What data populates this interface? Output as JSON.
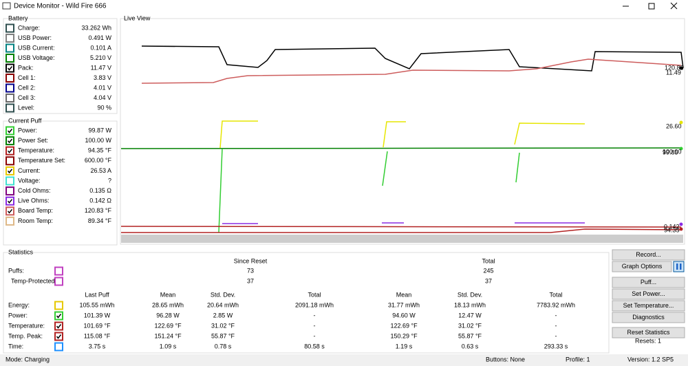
{
  "window": {
    "title": "Device Monitor - Wild Fire 666"
  },
  "battery": {
    "title": "Battery",
    "rows": [
      {
        "label": "Charge:",
        "value": "33.262 Wh",
        "color": "#2f4f4f",
        "checked": false
      },
      {
        "label": "USB Power:",
        "value": "0.491 W",
        "color": "#808080",
        "checked": false
      },
      {
        "label": "USB Current:",
        "value": "0.101 A",
        "color": "#008080",
        "checked": false
      },
      {
        "label": "USB Voltage:",
        "value": "5.210 V",
        "color": "#008000",
        "checked": false
      },
      {
        "label": "Pack:",
        "value": "11.47 V",
        "color": "#000000",
        "checked": true
      },
      {
        "label": "Cell 1:",
        "value": "3.83 V",
        "color": "#8b0000",
        "checked": false
      },
      {
        "label": "Cell 2:",
        "value": "4.01 V",
        "color": "#00008b",
        "checked": false
      },
      {
        "label": "Cell 3:",
        "value": "4.04 V",
        "color": "#696969",
        "checked": false
      },
      {
        "label": "Level:",
        "value": "90 %",
        "color": "#2f4f4f",
        "checked": false
      }
    ]
  },
  "current_puff": {
    "title": "Current Puff",
    "rows": [
      {
        "label": "Power:",
        "value": "99.87 W",
        "color": "#32cd32",
        "checked": true
      },
      {
        "label": "Power Set:",
        "value": "100.00 W",
        "color": "#008000",
        "checked": true
      },
      {
        "label": "Temperature:",
        "value": "94.35 °F",
        "color": "#b22222",
        "checked": true
      },
      {
        "label": "Temperature Set:",
        "value": "600.00 °F",
        "color": "#8b0000",
        "checked": false
      },
      {
        "label": "Current:",
        "value": "26.53 A",
        "color": "#e6c800",
        "checked": true
      },
      {
        "label": "Voltage:",
        "value": "?",
        "color": "#40e0d0",
        "checked": false
      },
      {
        "label": "Cold Ohms:",
        "value": "0.135 Ω",
        "color": "#800080",
        "checked": false
      },
      {
        "label": "Live Ohms:",
        "value": "0.142 Ω",
        "color": "#8a2be2",
        "checked": true
      },
      {
        "label": "Board Temp:",
        "value": "120.83 °F",
        "color": "#cd5c5c",
        "checked": true
      },
      {
        "label": "Room Temp:",
        "value": "89.34 °F",
        "color": "#deb887",
        "checked": false
      }
    ]
  },
  "live_view": {
    "title": "Live View",
    "end_labels": [
      "120.83",
      "11.49",
      "26.60",
      "100.00",
      "99.85",
      "0.142",
      "94.35"
    ]
  },
  "statistics": {
    "title": "Statistics",
    "since_reset": "Since Reset",
    "total": "Total",
    "summary": [
      {
        "label": "Puffs:",
        "color": "#c040c0",
        "since_reset": "73",
        "total": "245"
      },
      {
        "label": "Temp-Protected:",
        "color": "#c040c0",
        "since_reset": "37",
        "total": "37"
      }
    ],
    "columns": [
      "Last Puff",
      "Mean",
      "Std. Dev.",
      "Total",
      "Mean",
      "Std. Dev.",
      "Total"
    ],
    "rows": [
      {
        "label": "Energy:",
        "color": "#e6c800",
        "checked": false,
        "values": [
          "105.55 mWh",
          "28.65 mWh",
          "20.64 mWh",
          "2091.18 mWh",
          "31.77 mWh",
          "18.13 mWh",
          "7783.92 mWh"
        ]
      },
      {
        "label": "Power:",
        "color": "#32cd32",
        "checked": true,
        "values": [
          "101.39 W",
          "96.28 W",
          "2.85 W",
          "-",
          "94.60 W",
          "12.47 W",
          "-"
        ]
      },
      {
        "label": "Temperature:",
        "color": "#b22222",
        "checked": true,
        "values": [
          "101.69 °F",
          "122.69 °F",
          "31.02 °F",
          "-",
          "122.69 °F",
          "31.02 °F",
          "-"
        ]
      },
      {
        "label": "Temp. Peak:",
        "color": "#b22222",
        "checked": true,
        "values": [
          "115.08 °F",
          "151.24 °F",
          "55.87 °F",
          "-",
          "150.29 °F",
          "55.87 °F",
          "-"
        ]
      },
      {
        "label": "Time:",
        "color": "#1e90ff",
        "checked": false,
        "values": [
          "3.75 s",
          "1.09 s",
          "0.78 s",
          "80.58 s",
          "1.19 s",
          "0.63 s",
          "293.33 s"
        ]
      }
    ]
  },
  "buttons": [
    "Record...",
    "Graph Options",
    "Puff...",
    "Set Power...",
    "Set Temperature...",
    "Diagnostics",
    "Reset Statistics"
  ],
  "resets": "Resets: 1",
  "status": {
    "mode": "Mode: Charging",
    "buttons": "Buttons: None",
    "profile": "Profile: 1",
    "version": "Version: 1.2 SP5"
  }
}
